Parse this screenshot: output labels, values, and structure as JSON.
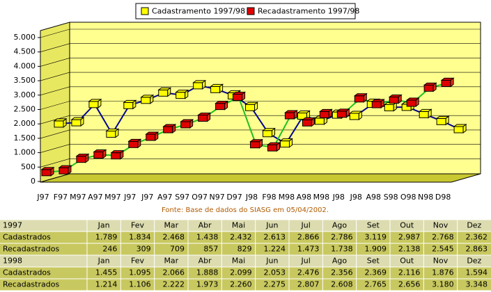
{
  "chart_data": {
    "type": "line",
    "categories": [
      "J97",
      "F97",
      "M97",
      "A97",
      "M97",
      "J97",
      "J97",
      "A97",
      "S97",
      "O97",
      "N97",
      "D97",
      "J98",
      "F98",
      "M98",
      "A98",
      "M98",
      "J98",
      "J98",
      "A98",
      "S98",
      "O98",
      "N98",
      "D98"
    ],
    "series": [
      {
        "name": "Cadastramento 1997/98",
        "color": "#ffff00",
        "line_color": "#000090",
        "values": [
          1789,
          1834,
          2468,
          1438,
          2432,
          2613,
          2866,
          2786,
          3119,
          2987,
          2768,
          2362,
          1455,
          1095,
          2066,
          1888,
          2099,
          2053,
          2476,
          2356,
          2369,
          2116,
          1876,
          1594
        ],
        "value_labels": [
          "1.789",
          "1.834",
          "2.468",
          "1.438",
          "2.432",
          "2.613",
          "2.866",
          "2.786",
          "3.119",
          "2.987",
          "2.768",
          "2.362",
          "1.455",
          "1.095",
          "2.066",
          "1.888",
          "2.099",
          "2.053",
          "2.476",
          "2.356",
          "2.369",
          "2.116",
          "1.876",
          "1.594"
        ]
      },
      {
        "name": "Recadastramento 1997/98",
        "color": "#e00000",
        "line_color": "#20c020",
        "values": [
          246,
          309,
          709,
          857,
          829,
          1224,
          1473,
          1738,
          1909,
          2138,
          2545,
          2863,
          1214,
          1106,
          2222,
          1973,
          2260,
          2275,
          2807,
          2608,
          2765,
          2656,
          3180,
          3348
        ],
        "value_labels": [
          "246",
          "309",
          "709",
          "857",
          "829",
          "1.224",
          "1.473",
          "1.738",
          "1.909",
          "2.138",
          "2.545",
          "2.863",
          "1.214",
          "1.106",
          "2.222",
          "1.973",
          "2.260",
          "2.275",
          "2.807",
          "2.608",
          "2.765",
          "2.656",
          "3.180",
          "3.348"
        ]
      }
    ],
    "ylim": [
      0,
      5000
    ],
    "yticks": [
      0,
      500,
      {
        "value": 1000,
        "label": "1.000"
      },
      {
        "value": 1500,
        "label": "1.500"
      },
      {
        "value": 2000,
        "label": "2.000"
      },
      {
        "value": 2500,
        "label": "2.500"
      },
      {
        "value": 3000,
        "label": "3.000"
      },
      {
        "value": 3500,
        "label": "3.500"
      },
      {
        "value": 4000,
        "label": "4.000"
      },
      {
        "value": 4500,
        "label": "4.500"
      },
      {
        "value": 5000,
        "label": "5.000"
      }
    ],
    "grid": true,
    "source": "Fonte: Base de dados do SIASG em 05/04/2002."
  },
  "table": {
    "years": [
      "1997",
      "1998"
    ],
    "months": [
      "Jan",
      "Fev",
      "Mar",
      "Abr",
      "Mai",
      "Jun",
      "Jul",
      "Ago",
      "Set",
      "Out",
      "Nov",
      "Dez"
    ],
    "row_labels": [
      "Cadastrados",
      "Recadastrados"
    ]
  }
}
